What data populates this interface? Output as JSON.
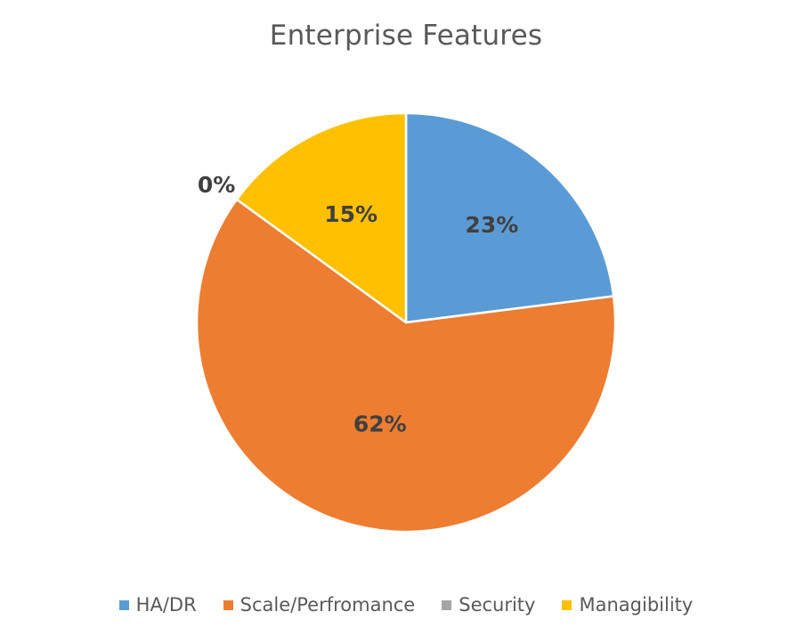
{
  "chart_data": {
    "type": "pie",
    "title": "Enterprise Features",
    "categories": [
      "HA/DR",
      "Scale/Perfromance",
      "Security",
      "Managibility"
    ],
    "values": [
      23,
      62,
      0,
      15
    ],
    "value_labels": [
      "23%",
      "62%",
      "0%",
      "15%"
    ],
    "colors": [
      "#5B9BD5",
      "#ED7D31",
      "#A5A5A5",
      "#FFC000"
    ],
    "start_angle_deg": 0,
    "direction": "clockwise",
    "legend_position": "bottom"
  }
}
